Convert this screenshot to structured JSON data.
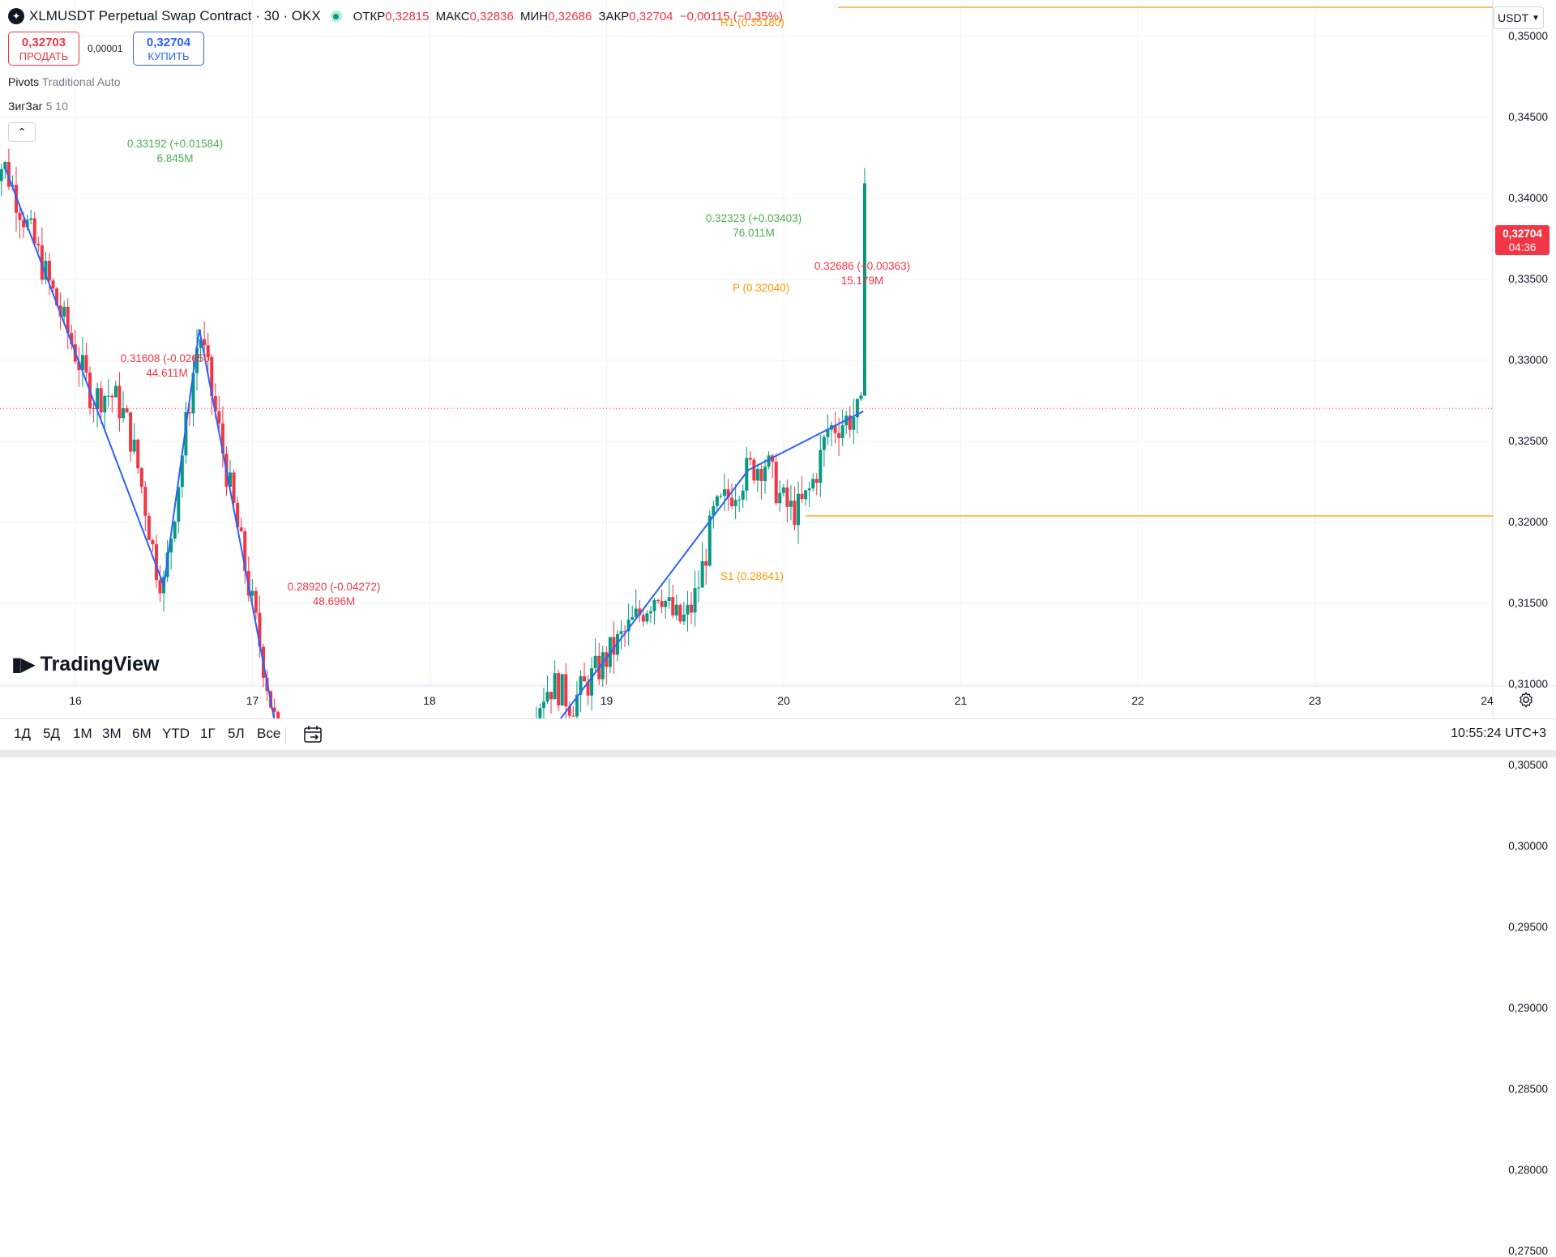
{
  "header": {
    "symbol_icon": "stellar-icon",
    "title": "XLMUSDT Perpetual Swap Contract · 30 · OKX",
    "ohlc": [
      {
        "key": "ОТКР",
        "value": "0,32815"
      },
      {
        "key": "МАКС",
        "value": "0,32836"
      },
      {
        "key": "МИН",
        "value": "0,32686"
      },
      {
        "key": "ЗАКР",
        "value": "0,32704"
      }
    ],
    "change": "−0,00115 (−0,35%)"
  },
  "trade": {
    "sell_price": "0,32703",
    "sell_label": "ПРОДАТЬ",
    "spread": "0,00001",
    "buy_price": "0,32704",
    "buy_label": "КУПИТЬ"
  },
  "indicators": [
    {
      "name": "Pivots",
      "params": "Traditional Auto"
    },
    {
      "name": "ЗигЗаг",
      "params": "5 10"
    }
  ],
  "collapse_icon": "chevron-up-icon",
  "currency": "USDT",
  "price_axis": {
    "ticks": [
      "0,35000",
      "0,34500",
      "0,34000",
      "0,33500",
      "0,33000",
      "0,32500",
      "0,32000",
      "0,31500",
      "0,31000",
      "0,30500",
      "0,30000",
      "0,29500",
      "0,29000",
      "0,28500",
      "0,28000",
      "0,27500"
    ],
    "last_price": "0,32704",
    "countdown": "04:36"
  },
  "time_axis": {
    "labels": [
      "16",
      "17",
      "18",
      "19",
      "20",
      "21",
      "22",
      "23",
      "24"
    ]
  },
  "zigzag_annotations": [
    {
      "text": "0.33192 (+0.01584)",
      "vol": "6.845M",
      "color": "green"
    },
    {
      "text": "0.31608 (-0.02650)",
      "vol": "44.611M",
      "color": "red"
    },
    {
      "text": "0.28920 (-0.04272)",
      "vol": "48.696M",
      "color": "red"
    },
    {
      "text": "0.32323 (+0.03403)",
      "vol": "76.011M",
      "color": "green"
    },
    {
      "text": "0.32686 (+0.00363)",
      "vol": "15.179M",
      "color": "red"
    }
  ],
  "pivots": [
    {
      "label": "R1 (0.35180)",
      "value": 0.3518
    },
    {
      "label": "P (0.32040)",
      "value": 0.3204
    },
    {
      "label": "S1 (0.28641)",
      "value": 0.28641
    }
  ],
  "chart_data": {
    "type": "candlestick",
    "symbol": "XLMUSDT",
    "interval": "30",
    "ylim": [
      0.2725,
      0.3515
    ],
    "grid": true,
    "last_close": 0.32704,
    "zigzag": [
      {
        "day": 15.6,
        "price": 0.342
      },
      {
        "day": 16.5,
        "price": 0.31608
      },
      {
        "day": 16.7,
        "price": 0.33192
      },
      {
        "day": 17.45,
        "price": 0.2892
      },
      {
        "day": 19.8,
        "price": 0.32323
      },
      {
        "day": 20.45,
        "price": 0.32686
      }
    ],
    "pivot_levels": {
      "R1": 0.3518,
      "P": 0.3204,
      "S1": 0.28641,
      "prev_P": 0.30425
    },
    "current_day": 20.46
  },
  "watermark": "TradingView",
  "bottom_bar": {
    "ranges": [
      "1Д",
      "5Д",
      "1М",
      "3М",
      "6М",
      "YTD",
      "1Г",
      "5Л",
      "Все"
    ],
    "goto_icon": "calendar-goto-icon",
    "clock": "10:55:24 UTC+3",
    "settings_icon": "gear-icon"
  }
}
